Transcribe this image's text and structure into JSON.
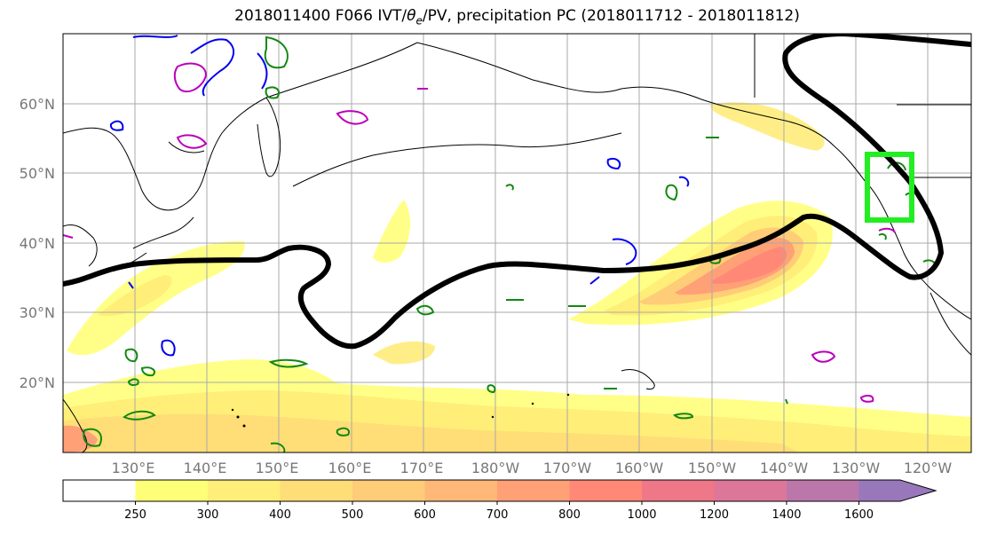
{
  "title": {
    "prefix": "2018011400 F066 IVT/",
    "theta": "θ",
    "sub": "e",
    "suffix": "/PV, precipitation PC (2018011712 - 2018011812)"
  },
  "map": {
    "lat_labels": [
      "60°N",
      "50°N",
      "40°N",
      "30°N",
      "20°N"
    ],
    "lon_labels": [
      "130°E",
      "140°E",
      "150°E",
      "160°E",
      "170°E",
      "180°W",
      "170°W",
      "160°W",
      "150°W",
      "140°W",
      "130°W",
      "120°W"
    ],
    "colors": {
      "jet_contour": "#000000",
      "highlight_box": "#22ee22",
      "theta_contours": "#118811",
      "pv_contours_blue": "#0000ee",
      "pv_contours_magenta": "#bb00bb"
    }
  },
  "colorbar": {
    "levels": [
      "250",
      "300",
      "400",
      "500",
      "600",
      "700",
      "800",
      "1000",
      "1200",
      "1400",
      "1600"
    ],
    "colors": [
      "#ffffff",
      "#ffff77",
      "#ffee77",
      "#ffdd77",
      "#ffcc77",
      "#ffb877",
      "#ffa077",
      "#ff8877",
      "#ee7788",
      "#dd7799",
      "#bb77aa",
      "#9977bb"
    ]
  }
}
